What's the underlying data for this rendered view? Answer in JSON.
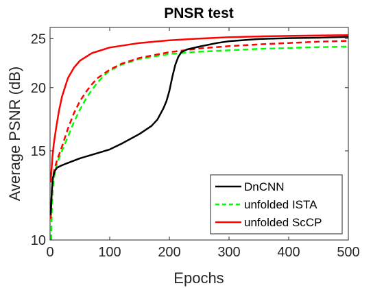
{
  "chart_data": {
    "type": "line",
    "title": "PNSR test",
    "xlabel": "Epochs",
    "ylabel": "Average PSNR (dB)",
    "xlim": [
      0,
      500
    ],
    "ylim": [
      10,
      26.3
    ],
    "yscale": "log",
    "xticks": [
      0,
      100,
      200,
      300,
      400,
      500
    ],
    "yticks": [
      10,
      15,
      20,
      25
    ],
    "grid": false,
    "legend_position": "bottom-right",
    "series": [
      {
        "name": "DnCNN",
        "color": "#000000",
        "style": "solid",
        "x": [
          1,
          3,
          5,
          8,
          12,
          20,
          30,
          50,
          80,
          100,
          120,
          150,
          170,
          180,
          190,
          195,
          200,
          205,
          210,
          215,
          220,
          230,
          250,
          280,
          300,
          350,
          400,
          450,
          500
        ],
        "y": [
          11.2,
          12.5,
          13.3,
          13.7,
          13.9,
          14.05,
          14.2,
          14.5,
          14.85,
          15.1,
          15.5,
          16.2,
          16.8,
          17.3,
          18.2,
          18.8,
          19.7,
          21.0,
          22.2,
          23.0,
          23.5,
          23.8,
          24.1,
          24.5,
          24.7,
          24.95,
          25.05,
          25.1,
          25.2
        ]
      },
      {
        "name": "unfolded ISTA",
        "color": "#00ff00",
        "style": "dashed",
        "x": [
          2,
          3,
          5,
          8,
          12,
          20,
          30,
          40,
          50,
          60,
          70,
          80,
          90,
          100,
          120,
          150,
          200,
          250,
          300,
          350,
          400,
          450,
          500
        ],
        "y": [
          10.0,
          11.5,
          12.8,
          13.6,
          14.2,
          15.0,
          16.0,
          17.1,
          18.1,
          19.0,
          19.8,
          20.5,
          21.1,
          21.6,
          22.2,
          22.8,
          23.3,
          23.55,
          23.7,
          23.85,
          23.95,
          24.05,
          24.1
        ]
      },
      {
        "name": "unfolded ScCP",
        "color": "#ff0000",
        "style": "solid",
        "x": [
          1,
          2,
          4,
          6,
          10,
          15,
          20,
          30,
          40,
          50,
          70,
          100,
          150,
          200,
          250,
          300,
          350,
          400,
          450,
          500
        ],
        "y": [
          13.0,
          13.5,
          14.6,
          15.4,
          16.6,
          18.0,
          19.2,
          20.9,
          21.9,
          22.6,
          23.4,
          24.0,
          24.5,
          24.8,
          25.0,
          25.15,
          25.25,
          25.3,
          25.35,
          25.4
        ]
      },
      {
        "name": "",
        "color": "#ff0000",
        "style": "dashed",
        "x": [
          1,
          3,
          5,
          8,
          12,
          20,
          30,
          40,
          50,
          60,
          70,
          80,
          90,
          100,
          120,
          150,
          200,
          250,
          300,
          350,
          400,
          450,
          500
        ],
        "y": [
          11.0,
          12.5,
          13.4,
          13.9,
          14.4,
          15.3,
          16.6,
          17.8,
          18.8,
          19.6,
          20.3,
          20.9,
          21.3,
          21.7,
          22.3,
          22.9,
          23.5,
          23.9,
          24.15,
          24.35,
          24.5,
          24.65,
          24.75
        ]
      }
    ]
  }
}
